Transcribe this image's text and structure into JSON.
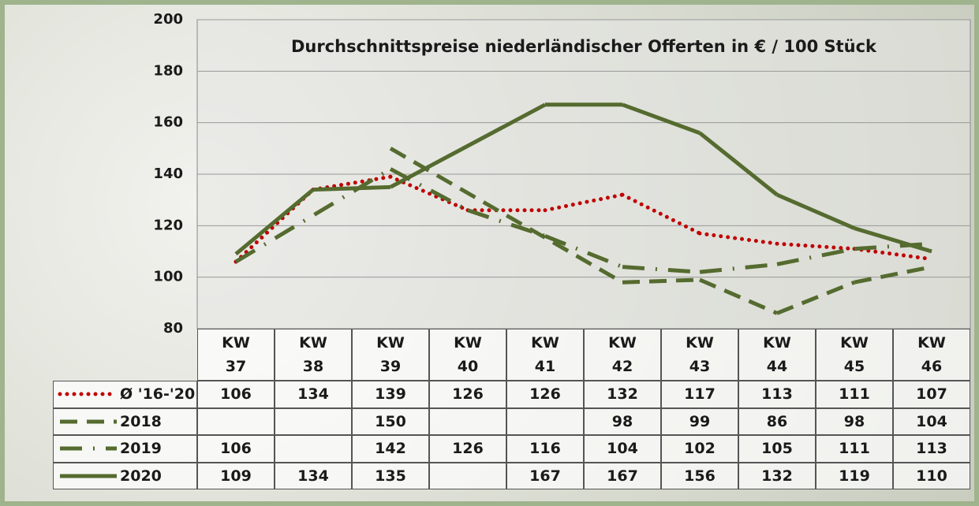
{
  "chart_data": {
    "type": "line",
    "title": "Durchschnittspreise niederländischer Offerten in € / 100 Stück",
    "categories": [
      "KW 37",
      "KW 38",
      "KW 39",
      "KW 40",
      "KW 41",
      "KW 42",
      "KW 43",
      "KW 44",
      "KW 45",
      "KW 46"
    ],
    "series": [
      {
        "name": "Ø '16-'20",
        "color": "#c00000",
        "style": "dotted",
        "values": [
          106,
          134,
          139,
          126,
          126,
          132,
          117,
          113,
          111,
          107
        ]
      },
      {
        "name": "2018",
        "color": "#556b2f",
        "style": "dashed",
        "values": [
          null,
          null,
          150,
          null,
          null,
          98,
          99,
          86,
          98,
          104
        ]
      },
      {
        "name": "2019",
        "color": "#556b2f",
        "style": "dashdot",
        "values": [
          106,
          null,
          142,
          126,
          116,
          104,
          102,
          105,
          111,
          113
        ]
      },
      {
        "name": "2020",
        "color": "#556b2f",
        "style": "solid",
        "values": [
          109,
          134,
          135,
          null,
          167,
          167,
          156,
          132,
          119,
          110
        ]
      }
    ],
    "ylim": [
      80,
      200
    ],
    "yticks": [
      80,
      100,
      120,
      140,
      160,
      180,
      200
    ],
    "grid": true,
    "data_table": true
  }
}
